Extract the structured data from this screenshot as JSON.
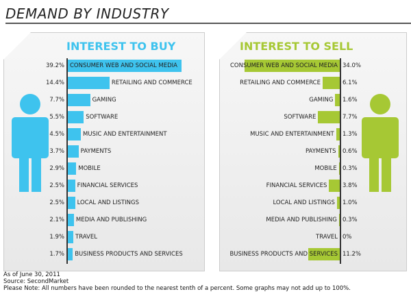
{
  "title": "DEMAND BY INDUSTRY",
  "colors": {
    "buy": "#3ec3ee",
    "sell": "#a6c834"
  },
  "chart_data": [
    {
      "type": "bar",
      "title": "INTEREST TO BUY",
      "orientation": "horizontal",
      "unit": "%",
      "categories": [
        "CONSUMER WEB AND SOCIAL MEDIA",
        "RETAILING AND COMMERCE",
        "GAMING",
        "SOFTWARE",
        "MUSIC AND ENTERTAINMENT",
        "PAYMENTS",
        "MOBILE",
        "FINANCIAL SERVICES",
        "LOCAL AND LISTINGS",
        "MEDIA AND PUBLISHING",
        "TRAVEL",
        "BUSINESS PRODUCTS AND SERVICES"
      ],
      "values": [
        39.2,
        14.4,
        7.7,
        5.5,
        4.5,
        3.7,
        2.9,
        2.5,
        2.5,
        2.1,
        1.9,
        1.7
      ],
      "labels": [
        "39.2%",
        "14.4%",
        "7.7%",
        "5.5%",
        "4.5%",
        "3.7%",
        "2.9%",
        "2.5%",
        "2.5%",
        "2.1%",
        "1.9%",
        "1.7%"
      ]
    },
    {
      "type": "bar",
      "title": "INTEREST TO SELL",
      "orientation": "horizontal",
      "unit": "%",
      "categories": [
        "CONSUMER WEB AND SOCIAL MEDIA",
        "RETAILING AND COMMERCE",
        "GAMING",
        "SOFTWARE",
        "MUSIC AND ENTERTAINMENT",
        "PAYMENTS",
        "MOBILE",
        "FINANCIAL SERVICES",
        "LOCAL AND LISTINGS",
        "MEDIA AND PUBLISHING",
        "TRAVEL",
        "BUSINESS PRODUCTS AND SERVICES"
      ],
      "values": [
        34.0,
        6.1,
        1.6,
        7.7,
        1.3,
        0.6,
        0.3,
        3.8,
        1.0,
        0.3,
        0,
        11.2
      ],
      "labels": [
        "34.0%",
        "6.1%",
        "1.6%",
        "7.7%",
        "1.3%",
        "0.6%",
        "0.3%",
        "3.8%",
        "1.0%",
        "0.3%",
        "0%",
        "11.2%"
      ]
    }
  ],
  "footer": {
    "date": "As of June 30, 2011",
    "source": "Source: SecondMarket",
    "note": "Please Note: All numbers have been rounded to the nearest tenth of a percent. Some graphs may not add up to 100%."
  }
}
